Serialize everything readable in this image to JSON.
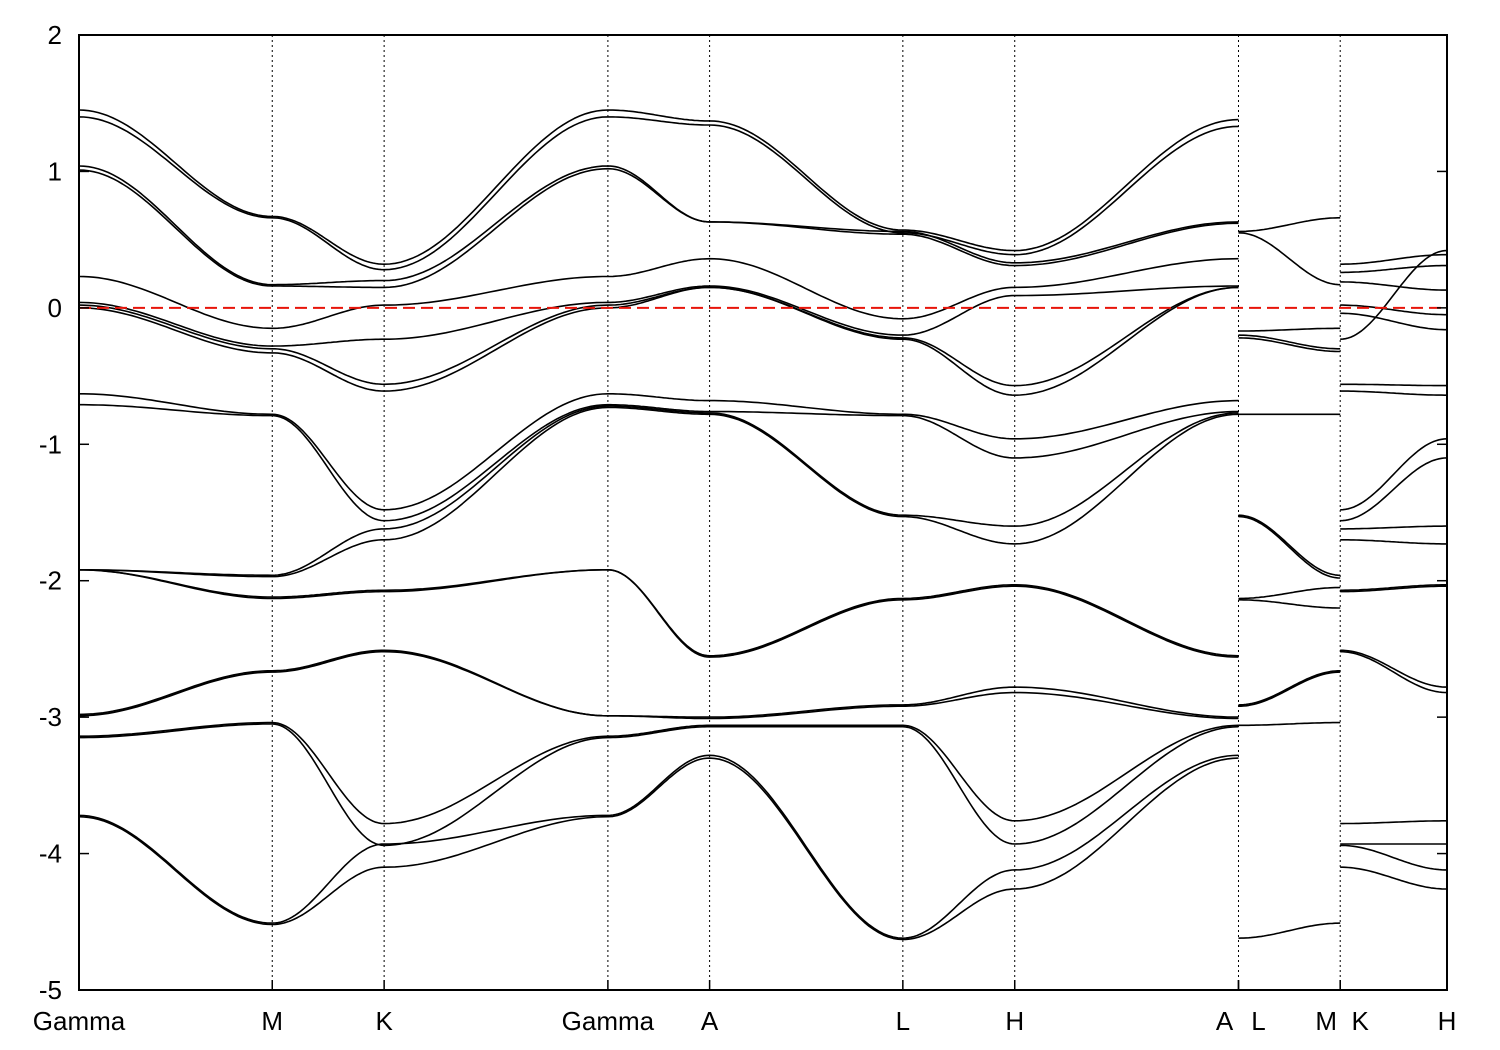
{
  "chart_data": {
    "type": "line",
    "title": "",
    "xlabel": "",
    "ylabel": "",
    "ylim": [
      -5,
      2
    ],
    "xlim": [
      0,
      13.45
    ],
    "yticks": [
      2,
      1,
      0,
      -1,
      -2,
      -3,
      -4,
      -5
    ],
    "grid": false,
    "legend": "none",
    "fermi_level": 0,
    "colors": {
      "bands": "#000000",
      "fermi": "#e8140a",
      "kpath_lines": "#000000"
    },
    "kpoints": [
      {
        "label": "Gamma",
        "x": 0.0
      },
      {
        "label": "M",
        "x": 1.9
      },
      {
        "label": "K",
        "x": 3.0
      },
      {
        "label": "Gamma",
        "x": 5.2
      },
      {
        "label": "A",
        "x": 6.2
      },
      {
        "label": "L",
        "x": 8.1
      },
      {
        "label": "H",
        "x": 9.2
      },
      {
        "label": "A",
        "x": 11.4
      },
      {
        "label": "L",
        "x": 11.4
      },
      {
        "label": "M",
        "x": 12.4
      },
      {
        "label": "K",
        "x": 12.4
      },
      {
        "label": "H",
        "x": 13.45
      }
    ],
    "segments": [
      {
        "x_range": [
          0.0,
          11.4
        ],
        "labels_at_nodes": [
          "Gamma",
          "M",
          "K",
          "Gamma",
          "A",
          "L",
          "H",
          "A"
        ],
        "series": [
          {
            "values": [
              1.45,
              0.67,
              0.32,
              1.45,
              1.37,
              0.57,
              0.42,
              1.38
            ]
          },
          {
            "values": [
              1.4,
              0.66,
              0.28,
              1.4,
              1.34,
              0.55,
              0.39,
              1.33
            ]
          },
          {
            "values": [
              1.04,
              0.17,
              0.2,
              1.04,
              0.63,
              0.56,
              0.33,
              0.63
            ]
          },
          {
            "values": [
              1.01,
              0.16,
              0.15,
              1.02,
              0.63,
              0.54,
              0.31,
              0.62
            ]
          },
          {
            "values": [
              0.23,
              -0.15,
              0.02,
              0.23,
              0.36,
              -0.08,
              0.15,
              0.36
            ]
          },
          {
            "values": [
              0.04,
              -0.28,
              -0.23,
              0.04,
              0.16,
              -0.2,
              0.09,
              0.16
            ]
          },
          {
            "values": [
              0.02,
              -0.3,
              -0.56,
              0.02,
              0.15,
              -0.22,
              -0.57,
              0.15
            ]
          },
          {
            "values": [
              0.0,
              -0.33,
              -0.61,
              0.0,
              0.15,
              -0.23,
              -0.64,
              0.15
            ]
          },
          {
            "values": [
              -0.63,
              -0.78,
              -1.48,
              -0.63,
              -0.68,
              -0.78,
              -0.96,
              -0.68
            ]
          },
          {
            "values": [
              -0.71,
              -0.79,
              -1.56,
              -0.71,
              -0.76,
              -0.79,
              -1.1,
              -0.76
            ]
          },
          {
            "values": [
              -1.92,
              -1.96,
              -1.62,
              -0.72,
              -0.77,
              -1.52,
              -1.6,
              -0.77
            ]
          },
          {
            "values": [
              -1.92,
              -1.97,
              -1.7,
              -0.73,
              -0.78,
              -1.53,
              -1.73,
              -0.78
            ]
          },
          {
            "values": [
              -1.92,
              -2.12,
              -2.07,
              -1.92,
              -2.55,
              -2.13,
              -2.03,
              -2.55
            ]
          },
          {
            "values": [
              -1.92,
              -2.13,
              -2.08,
              -1.92,
              -2.56,
              -2.14,
              -2.04,
              -2.56
            ]
          },
          {
            "values": [
              -2.98,
              -2.66,
              -2.51,
              -2.99,
              -3.0,
              -2.91,
              -2.78,
              -3.0
            ]
          },
          {
            "values": [
              -2.99,
              -2.67,
              -2.52,
              -2.99,
              -3.01,
              -2.92,
              -2.82,
              -3.01
            ]
          },
          {
            "values": [
              -3.14,
              -3.04,
              -3.78,
              -3.14,
              -3.06,
              -3.06,
              -3.76,
              -3.06
            ]
          },
          {
            "values": [
              -3.15,
              -3.05,
              -3.94,
              -3.15,
              -3.07,
              -3.07,
              -3.93,
              -3.07
            ]
          },
          {
            "values": [
              -3.72,
              -4.51,
              -3.93,
              -3.72,
              -3.28,
              -4.62,
              -4.12,
              -3.28
            ]
          },
          {
            "values": [
              -3.73,
              -4.52,
              -4.1,
              -3.73,
              -3.3,
              -4.63,
              -4.26,
              -3.3
            ]
          }
        ]
      },
      {
        "x_range": [
          11.4,
          12.4
        ],
        "labels_at_nodes": [
          "L",
          "M"
        ],
        "series": [
          {
            "values": [
              0.56,
              0.66
            ]
          },
          {
            "values": [
              0.55,
              0.17
            ]
          },
          {
            "values": [
              -0.17,
              -0.15
            ]
          },
          {
            "values": [
              -0.2,
              -0.3
            ]
          },
          {
            "values": [
              -0.22,
              -0.32
            ]
          },
          {
            "values": [
              -0.78,
              -0.78
            ]
          },
          {
            "values": [
              -1.52,
              -1.96
            ]
          },
          {
            "values": [
              -1.53,
              -1.98
            ]
          },
          {
            "values": [
              -2.13,
              -2.05
            ]
          },
          {
            "values": [
              -2.14,
              -2.2
            ]
          },
          {
            "values": [
              -2.91,
              -2.66
            ]
          },
          {
            "values": [
              -2.92,
              -2.67
            ]
          },
          {
            "values": [
              -3.06,
              -3.04
            ]
          },
          {
            "values": [
              -4.62,
              -4.51
            ]
          }
        ]
      },
      {
        "x_range": [
          12.4,
          13.45
        ],
        "labels_at_nodes": [
          "K",
          "H"
        ],
        "series": [
          {
            "values": [
              0.32,
              0.39
            ]
          },
          {
            "values": [
              0.26,
              0.31
            ]
          },
          {
            "values": [
              0.19,
              0.13
            ]
          },
          {
            "values": [
              0.02,
              -0.05
            ]
          },
          {
            "values": [
              -0.04,
              -0.16
            ]
          },
          {
            "values": [
              -0.23,
              0.42
            ]
          },
          {
            "values": [
              -0.56,
              -0.57
            ]
          },
          {
            "values": [
              -0.61,
              -0.64
            ]
          },
          {
            "values": [
              -1.48,
              -0.96
            ]
          },
          {
            "values": [
              -1.56,
              -1.1
            ]
          },
          {
            "values": [
              -1.62,
              -1.6
            ]
          },
          {
            "values": [
              -1.7,
              -1.73
            ]
          },
          {
            "values": [
              -2.07,
              -2.03
            ]
          },
          {
            "values": [
              -2.08,
              -2.04
            ]
          },
          {
            "values": [
              -2.51,
              -2.78
            ]
          },
          {
            "values": [
              -2.52,
              -2.82
            ]
          },
          {
            "values": [
              -3.78,
              -3.76
            ]
          },
          {
            "values": [
              -3.93,
              -3.93
            ]
          },
          {
            "values": [
              -3.94,
              -4.12
            ]
          },
          {
            "values": [
              -4.1,
              -4.26
            ]
          }
        ]
      }
    ]
  }
}
